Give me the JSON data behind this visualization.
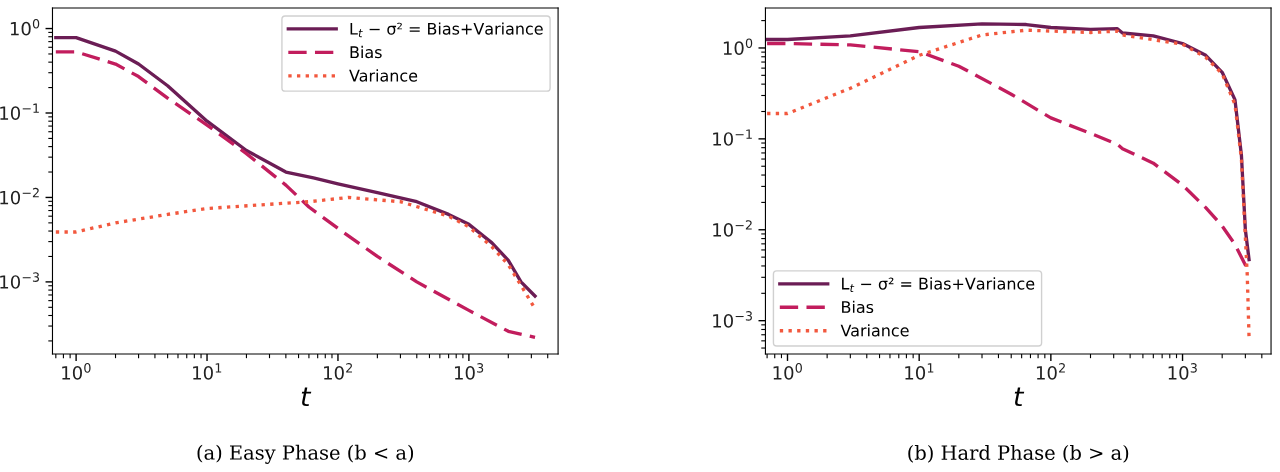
{
  "chart_data": [
    {
      "type": "line",
      "xlabel": "t",
      "log": "xy",
      "grid": false,
      "legend": "top right",
      "xlim": [
        0.66,
        4800
      ],
      "ylim": [
        0.00014,
        1.75
      ],
      "xticks": [
        {
          "value": 1,
          "label": "10$^{0}$"
        },
        {
          "value": 10,
          "label": "10$^{1}$"
        },
        {
          "value": 100,
          "label": "10$^{2}$"
        },
        {
          "value": 1000,
          "label": "10$^{3}$"
        }
      ],
      "yticks": [
        {
          "value": 0.001,
          "label": "10$^{−3}$"
        },
        {
          "value": 0.01,
          "label": "10$^{−2}$"
        },
        {
          "value": 0.1,
          "label": "10$^{−1}$"
        },
        {
          "value": 1,
          "label": "10$^{0}$"
        }
      ],
      "annotations": [
        "(a) Easy Phase (b < a)"
      ],
      "series": [
        {
          "name": "L$_{t}$ − σ² = Bias+Variance",
          "color": "#6b1d55",
          "line_style": "solid",
          "x": [
            0.7,
            1,
            2,
            3,
            5,
            10,
            20,
            40,
            65,
            100,
            200,
            400,
            700,
            1000,
            1500,
            2000,
            2500,
            3200
          ],
          "values": [
            0.78,
            0.78,
            0.54,
            0.38,
            0.21,
            0.08,
            0.036,
            0.02,
            0.017,
            0.0145,
            0.0114,
            0.0089,
            0.0063,
            0.0048,
            0.0029,
            0.0018,
            0.001,
            0.00068
          ]
        },
        {
          "name": "Bias",
          "color": "#c21d5d",
          "line_style": "dashed",
          "x": [
            0.7,
            1,
            2,
            3,
            5,
            10,
            20,
            40,
            60,
            100,
            200,
            400,
            1000,
            2000,
            3200
          ],
          "values": [
            0.53,
            0.53,
            0.38,
            0.27,
            0.15,
            0.072,
            0.033,
            0.014,
            0.0077,
            0.0043,
            0.002,
            0.001,
            0.00046,
            0.00026,
            0.00022
          ]
        },
        {
          "name": "Variance",
          "color": "#f2583e",
          "line_style": "dotted",
          "x": [
            0.7,
            1,
            2,
            5,
            10,
            30,
            60,
            120,
            300,
            700,
            1000,
            1500,
            2000,
            2500,
            3200
          ],
          "values": [
            0.0039,
            0.0039,
            0.005,
            0.0063,
            0.0074,
            0.0083,
            0.0089,
            0.01,
            0.0089,
            0.006,
            0.0045,
            0.0026,
            0.0016,
            0.00091,
            0.00048
          ]
        }
      ]
    },
    {
      "type": "line",
      "xlabel": "t",
      "log": "xy",
      "grid": false,
      "legend": "bottom left",
      "xlim": [
        0.68,
        4700
      ],
      "ylim": [
        0.00043,
        2.75
      ],
      "xticks": [
        {
          "value": 1,
          "label": "10$^{0}$"
        },
        {
          "value": 10,
          "label": "10$^{1}$"
        },
        {
          "value": 100,
          "label": "10$^{2}$"
        },
        {
          "value": 1000,
          "label": "10$^{3}$"
        }
      ],
      "yticks": [
        {
          "value": 0.001,
          "label": "10$^{−3}$"
        },
        {
          "value": 0.01,
          "label": "10$^{−2}$"
        },
        {
          "value": 0.1,
          "label": "10$^{−1}$"
        },
        {
          "value": 1,
          "label": "10$^{0}$"
        }
      ],
      "annotations": [
        "(b) Hard Phase (b > a)"
      ],
      "series": [
        {
          "name": "L$_{t}$ − σ² = Bias+Variance",
          "color": "#6b1d55",
          "line_style": "solid",
          "x": [
            0.7,
            1,
            3,
            10,
            30,
            65,
            100,
            200,
            320,
            350,
            600,
            1000,
            1500,
            2000,
            2500,
            2800,
            3000,
            3200
          ],
          "values": [
            1.24,
            1.24,
            1.36,
            1.68,
            1.84,
            1.81,
            1.68,
            1.6,
            1.63,
            1.46,
            1.36,
            1.12,
            0.83,
            0.54,
            0.27,
            0.066,
            0.01,
            0.0047
          ]
        },
        {
          "name": "Bias",
          "color": "#c21d5d",
          "line_style": "dashed",
          "x": [
            0.7,
            1,
            3,
            10,
            20,
            50,
            100,
            200,
            320,
            350,
            600,
            1000,
            1500,
            2000,
            2500,
            3000,
            3200
          ],
          "values": [
            1.12,
            1.12,
            1.08,
            0.91,
            0.63,
            0.31,
            0.17,
            0.115,
            0.087,
            0.078,
            0.054,
            0.031,
            0.0175,
            0.011,
            0.0069,
            0.0041,
            0.0041
          ]
        },
        {
          "name": "Variance",
          "color": "#f2583e",
          "line_style": "dotted",
          "x": [
            0.7,
            1,
            3,
            10,
            30,
            65,
            200,
            320,
            350,
            1000,
            1500,
            2000,
            2500,
            2800,
            3000,
            3100,
            3200
          ],
          "values": [
            0.19,
            0.19,
            0.36,
            0.83,
            1.39,
            1.57,
            1.48,
            1.53,
            1.39,
            1.1,
            0.79,
            0.52,
            0.24,
            0.06,
            0.0083,
            0.0032,
            0.00065
          ]
        }
      ]
    }
  ]
}
